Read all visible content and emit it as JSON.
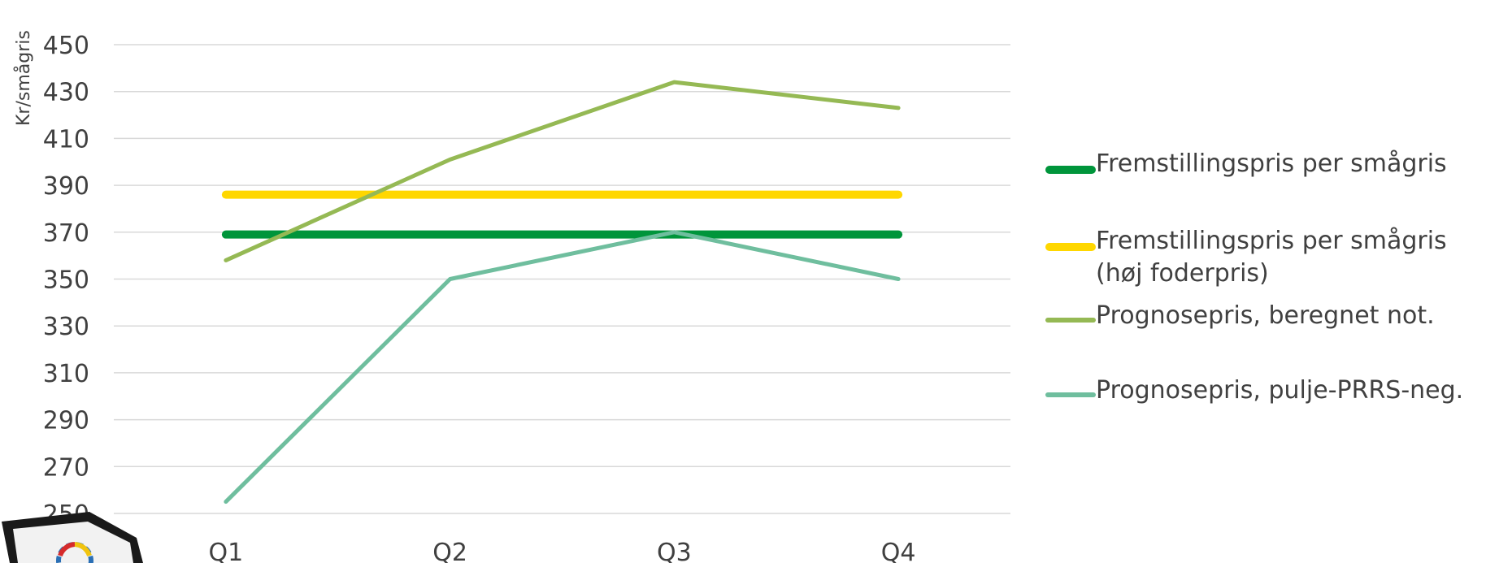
{
  "chart_data": {
    "type": "line",
    "title": "",
    "xlabel": "",
    "ylabel": "Kr/smågris",
    "categories": [
      "Q1",
      "Q2",
      "Q3",
      "Q4"
    ],
    "ylim": [
      250,
      450
    ],
    "yticks": [
      250,
      270,
      290,
      310,
      330,
      350,
      370,
      390,
      410,
      430,
      450
    ],
    "grid": true,
    "legend_position": "right",
    "series": [
      {
        "name": "Fremstillingspris per smågris",
        "color": "#00953B",
        "values": [
          369,
          369,
          369,
          369
        ]
      },
      {
        "name": "Fremstillingspris per smågris (høj foderpris)",
        "color": "#FFD700",
        "values": [
          386,
          386,
          386,
          386
        ]
      },
      {
        "name": "Prognosepris, beregnet not.",
        "color": "#95B954",
        "values": [
          358,
          401,
          434,
          423
        ]
      },
      {
        "name": "Prognosepris, pulje-PRRS-neg.",
        "color": "#6FBE9E",
        "values": [
          255,
          350,
          370,
          350
        ]
      }
    ]
  },
  "legend": {
    "items": [
      {
        "label": "Fremstillingspris per smågris"
      },
      {
        "label": "Fremstillingspris per smågris\n(høj foderpris)"
      },
      {
        "label": "Prognosepris, beregnet not."
      },
      {
        "label": "Prognosepris, pulje-PRRS-neg."
      }
    ]
  }
}
